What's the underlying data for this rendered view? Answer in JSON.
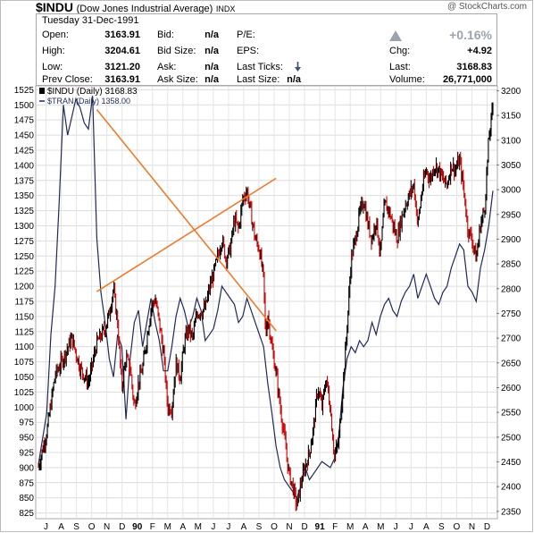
{
  "header": {
    "symbol": "$INDU",
    "name": "(Dow Jones Industrial Average)",
    "index_tag": "INDX",
    "brand": "@ StockCharts.com",
    "date": "Tuesday   31-Dec-1991"
  },
  "quote": {
    "open_label": "Open:",
    "open": "3163.91",
    "high_label": "High:",
    "high": "3204.61",
    "low_label": "Low:",
    "low": "3121.20",
    "prev_label": "Prev Close:",
    "prev": "3163.91",
    "bid_label": "Bid:",
    "bid": "n/a",
    "bidsize_label": "Bid Size:",
    "bidsize": "n/a",
    "ask_label": "Ask:",
    "ask": "n/a",
    "asksize_label": "Ask Size:",
    "asksize": "n/a",
    "pe_label": "P/E:",
    "eps_label": "EPS:",
    "lastticks_label": "Last Ticks:",
    "lastsize_label": "Last Size:",
    "lastsize": "n/a",
    "pct": "+0.16%",
    "chg_label": "Chg:",
    "chg": "+4.92",
    "last_label": "Last:",
    "last": "3168.83",
    "volume_label": "Volume:",
    "volume": "26,771,000",
    "colors": {
      "up_arrow": "#9aa3ae",
      "down_arrow": "#3b4f7a"
    }
  },
  "chart_data": {
    "type": "line",
    "legend": [
      {
        "text": "$INDU (Daily) 3168.83"
      },
      {
        "text": "$TRAN (Daily) 1358.00"
      }
    ],
    "x_ticks": [
      "J",
      "A",
      "S",
      "O",
      "N",
      "D",
      "90",
      "F",
      "M",
      "A",
      "M",
      "J",
      "J",
      "A",
      "S",
      "O",
      "N",
      "D",
      "91",
      "F",
      "M",
      "A",
      "M",
      "J",
      "J",
      "A",
      "S",
      "O",
      "N",
      "D"
    ],
    "left_axis": {
      "ticks": [
        825,
        850,
        875,
        900,
        925,
        950,
        975,
        1000,
        1025,
        1050,
        1075,
        1100,
        1125,
        1150,
        1175,
        1200,
        1225,
        1250,
        1275,
        1300,
        1325,
        1350,
        1375,
        1400,
        1425,
        1450,
        1475,
        1500,
        1525
      ],
      "range": [
        817,
        1530
      ]
    },
    "right_axis": {
      "ticks": [
        2350,
        2400,
        2450,
        2500,
        2550,
        2600,
        2650,
        2700,
        2750,
        2800,
        2850,
        2900,
        2950,
        3000,
        3050,
        3100,
        3150,
        3200
      ],
      "range": [
        2337,
        3208
      ]
    },
    "series": [
      {
        "name": "$INDU",
        "axis": "right",
        "color_up": "#000000",
        "color_down": "#cc0000",
        "points": [
          [
            0,
            2440
          ],
          [
            2,
            2510
          ],
          [
            4,
            2625
          ],
          [
            6,
            2660
          ],
          [
            8,
            2700
          ],
          [
            10,
            2640
          ],
          [
            12,
            2610
          ],
          [
            14,
            2690
          ],
          [
            16,
            2720
          ],
          [
            17,
            2750
          ],
          [
            18,
            2800
          ],
          [
            19,
            2730
          ],
          [
            20,
            2600
          ],
          [
            21,
            2660
          ],
          [
            22,
            2640
          ],
          [
            23,
            2560
          ],
          [
            24,
            2610
          ],
          [
            25,
            2640
          ],
          [
            26,
            2700
          ],
          [
            27,
            2760
          ],
          [
            28,
            2780
          ],
          [
            29,
            2730
          ],
          [
            30,
            2670
          ],
          [
            31,
            2560
          ],
          [
            32,
            2560
          ],
          [
            33,
            2650
          ],
          [
            34,
            2620
          ],
          [
            35,
            2690
          ],
          [
            36,
            2720
          ],
          [
            37,
            2700
          ],
          [
            38,
            2750
          ],
          [
            40,
            2760
          ],
          [
            41,
            2800
          ],
          [
            42,
            2830
          ],
          [
            44,
            2900
          ],
          [
            45,
            2860
          ],
          [
            46,
            2880
          ],
          [
            47,
            2940
          ],
          [
            48,
            2920
          ],
          [
            49,
            2980
          ],
          [
            50,
            3000
          ],
          [
            51,
            2950
          ],
          [
            52,
            2900
          ],
          [
            53,
            2880
          ],
          [
            54,
            2820
          ],
          [
            54.5,
            2700
          ],
          [
            55,
            2750
          ],
          [
            56,
            2680
          ],
          [
            57,
            2630
          ],
          [
            58,
            2560
          ],
          [
            59,
            2500
          ],
          [
            60,
            2430
          ],
          [
            61,
            2400
          ],
          [
            62,
            2360
          ],
          [
            63,
            2410
          ],
          [
            64,
            2440
          ],
          [
            65,
            2470
          ],
          [
            66,
            2520
          ],
          [
            67,
            2600
          ],
          [
            68,
            2560
          ],
          [
            69,
            2620
          ],
          [
            70,
            2560
          ],
          [
            71,
            2460
          ],
          [
            72,
            2490
          ],
          [
            73,
            2600
          ],
          [
            74,
            2720
          ],
          [
            75,
            2860
          ],
          [
            76,
            2900
          ],
          [
            77,
            2950
          ],
          [
            78,
            2980
          ],
          [
            79,
            2930
          ],
          [
            80,
            2900
          ],
          [
            81,
            2940
          ],
          [
            82,
            2870
          ],
          [
            83,
            2970
          ],
          [
            84,
            2960
          ],
          [
            85,
            2930
          ],
          [
            86,
            2900
          ],
          [
            87,
            2940
          ],
          [
            88,
            2970
          ],
          [
            89,
            2990
          ],
          [
            90,
            3010
          ],
          [
            91,
            2930
          ],
          [
            92,
            3000
          ],
          [
            93,
            3040
          ],
          [
            94,
            3020
          ],
          [
            95,
            3050
          ],
          [
            96,
            3040
          ],
          [
            97,
            3020
          ],
          [
            98,
            3010
          ],
          [
            99,
            3050
          ],
          [
            100,
            3040
          ],
          [
            101,
            3060
          ],
          [
            102,
            3000
          ],
          [
            103,
            2920
          ],
          [
            104,
            2900
          ],
          [
            105,
            2860
          ],
          [
            106,
            2930
          ],
          [
            107,
            2960
          ],
          [
            108,
            3100
          ],
          [
            109,
            3169
          ]
        ]
      },
      {
        "name": "$TRAN",
        "axis": "left",
        "color": "#1f2a5a",
        "points": [
          [
            0,
            905
          ],
          [
            2,
            990
          ],
          [
            3,
            1120
          ],
          [
            4,
            1200
          ],
          [
            5,
            1340
          ],
          [
            6,
            1500
          ],
          [
            7,
            1450
          ],
          [
            8,
            1480
          ],
          [
            9,
            1510
          ],
          [
            10,
            1495
          ],
          [
            11,
            1470
          ],
          [
            12,
            1460
          ],
          [
            13,
            1515
          ],
          [
            14,
            1280
          ],
          [
            15,
            1190
          ],
          [
            16,
            1140
          ],
          [
            17,
            1080
          ],
          [
            18,
            1050
          ],
          [
            19,
            1120
          ],
          [
            20,
            1100
          ],
          [
            21,
            980
          ],
          [
            22,
            1080
          ],
          [
            23,
            1140
          ],
          [
            24,
            1160
          ],
          [
            25,
            1100
          ],
          [
            26,
            1140
          ],
          [
            27,
            1180
          ],
          [
            28,
            1140
          ],
          [
            29,
            1110
          ],
          [
            30,
            1060
          ],
          [
            31,
            1060
          ],
          [
            32,
            1100
          ],
          [
            33,
            1150
          ],
          [
            34,
            1180
          ],
          [
            35,
            1160
          ],
          [
            36,
            1130
          ],
          [
            37,
            1150
          ],
          [
            38,
            1180
          ],
          [
            39,
            1160
          ],
          [
            40,
            1110
          ],
          [
            41,
            1120
          ],
          [
            42,
            1130
          ],
          [
            43,
            1160
          ],
          [
            44,
            1200
          ],
          [
            45,
            1190
          ],
          [
            46,
            1180
          ],
          [
            47,
            1170
          ],
          [
            48,
            1140
          ],
          [
            49,
            1150
          ],
          [
            50,
            1180
          ],
          [
            51,
            1160
          ],
          [
            52,
            1140
          ],
          [
            53,
            1120
          ],
          [
            54,
            1100
          ],
          [
            55,
            1040
          ],
          [
            56,
            990
          ],
          [
            57,
            935
          ],
          [
            58,
            900
          ],
          [
            59,
            880
          ],
          [
            60,
            870
          ],
          [
            61,
            860
          ],
          [
            62,
            850
          ],
          [
            63,
            870
          ],
          [
            64,
            900
          ],
          [
            65,
            880
          ],
          [
            66,
            890
          ],
          [
            67,
            900
          ],
          [
            68,
            910
          ],
          [
            69,
            905
          ],
          [
            70,
            900
          ],
          [
            71,
            915
          ],
          [
            72,
            950
          ],
          [
            73,
            1030
          ],
          [
            74,
            1080
          ],
          [
            75,
            1100
          ],
          [
            76,
            1090
          ],
          [
            77,
            1110
          ],
          [
            78,
            1100
          ],
          [
            79,
            1110
          ],
          [
            80,
            1140
          ],
          [
            81,
            1120
          ],
          [
            82,
            1150
          ],
          [
            83,
            1170
          ],
          [
            84,
            1180
          ],
          [
            85,
            1160
          ],
          [
            86,
            1150
          ],
          [
            87,
            1175
          ],
          [
            88,
            1190
          ],
          [
            89,
            1200
          ],
          [
            90,
            1220
          ],
          [
            91,
            1180
          ],
          [
            92,
            1200
          ],
          [
            93,
            1220
          ],
          [
            94,
            1200
          ],
          [
            95,
            1180
          ],
          [
            96,
            1170
          ],
          [
            97,
            1190
          ],
          [
            98,
            1200
          ],
          [
            99,
            1230
          ],
          [
            100,
            1250
          ],
          [
            101,
            1270
          ],
          [
            102,
            1260
          ],
          [
            103,
            1200
          ],
          [
            104,
            1190
          ],
          [
            105,
            1175
          ],
          [
            106,
            1230
          ],
          [
            107,
            1260
          ],
          [
            108,
            1300
          ],
          [
            109,
            1358
          ]
        ]
      }
    ],
    "trendlines": [
      {
        "color": "#f07a28",
        "from": [
          14,
          3162
        ],
        "to": [
          57,
          2715
        ],
        "axis": "right"
      },
      {
        "color": "#f07a28",
        "from": [
          14,
          2794
        ],
        "to": [
          57,
          3023
        ],
        "axis": "right"
      }
    ]
  }
}
